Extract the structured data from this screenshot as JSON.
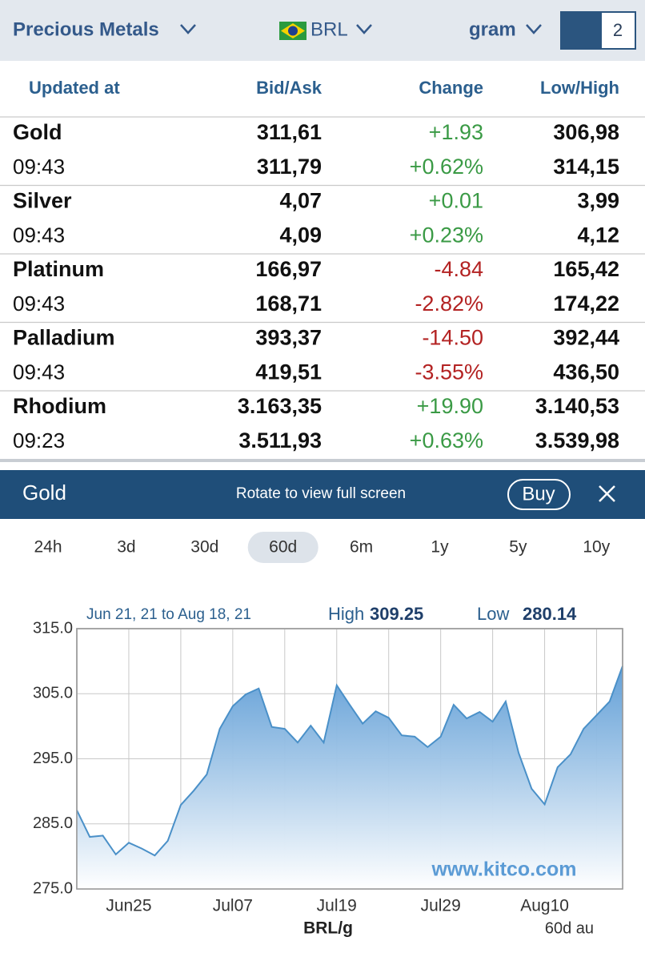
{
  "header": {
    "menu": "Precious Metals",
    "currency": "BRL",
    "unit": "gram",
    "badge": "2"
  },
  "table": {
    "columns": [
      "Updated at",
      "Bid/Ask",
      "Change",
      "Low/High"
    ],
    "rows": [
      {
        "name": "Gold",
        "time": "09:43",
        "bid": "311,61",
        "ask": "311,79",
        "change": "+1.93",
        "change_pct": "+0.62%",
        "low": "306,98",
        "high": "314,15"
      },
      {
        "name": "Silver",
        "time": "09:43",
        "bid": "4,07",
        "ask": "4,09",
        "change": "+0.01",
        "change_pct": "+0.23%",
        "low": "3,99",
        "high": "4,12"
      },
      {
        "name": "Platinum",
        "time": "09:43",
        "bid": "166,97",
        "ask": "168,71",
        "change": "-4.84",
        "change_pct": "-2.82%",
        "low": "165,42",
        "high": "174,22"
      },
      {
        "name": "Palladium",
        "time": "09:43",
        "bid": "393,37",
        "ask": "419,51",
        "change": "-14.50",
        "change_pct": "-3.55%",
        "low": "392,44",
        "high": "436,50"
      },
      {
        "name": "Rhodium",
        "time": "09:23",
        "bid": "3.163,35",
        "ask": "3.511,93",
        "change": "+19.90",
        "change_pct": "+0.63%",
        "low": "3.140,53",
        "high": "3.539,98"
      }
    ]
  },
  "panel": {
    "title": "Gold",
    "hint": "Rotate to view full screen",
    "buy": "Buy"
  },
  "ranges": [
    "24h",
    "3d",
    "30d",
    "60d",
    "6m",
    "1y",
    "5y",
    "10y"
  ],
  "selected_range": 3,
  "chart_data": {
    "type": "area",
    "subtitle": "Jun 21, 21 to Aug 18, 21",
    "high_label": "High",
    "high": 309.25,
    "low_label": "Low",
    "low": 280.14,
    "watermark": "www.kitco.com",
    "xlabel": "BRL/g",
    "corner_note": "60d au",
    "color": "#4a90c8",
    "categories": [
      null,
      null,
      null,
      null,
      "Jun25",
      null,
      null,
      null,
      null,
      null,
      null,
      null,
      "Jul07",
      null,
      null,
      null,
      null,
      null,
      null,
      null,
      "Jul19",
      null,
      null,
      null,
      null,
      null,
      null,
      null,
      "Jul29",
      null,
      null,
      null,
      null,
      null,
      null,
      null,
      "Aug10",
      null,
      null,
      null,
      null,
      null,
      null
    ],
    "values": [
      287.1,
      283.0,
      283.2,
      280.3,
      282.1,
      281.2,
      280.14,
      282.4,
      287.9,
      290.1,
      292.6,
      299.6,
      303.1,
      304.9,
      305.8,
      299.9,
      299.6,
      297.5,
      300.1,
      297.5,
      306.3,
      303.3,
      300.4,
      302.3,
      301.3,
      298.6,
      298.4,
      296.8,
      298.4,
      303.3,
      301.2,
      302.2,
      300.7,
      303.8,
      295.9,
      290.4,
      288.0,
      293.7,
      295.7,
      299.6,
      301.7,
      303.8,
      309.25
    ],
    "ylim": [
      275,
      315
    ],
    "yticks": [
      {
        "value": 275,
        "label": "275.0"
      },
      {
        "value": 285,
        "label": "285.0"
      },
      {
        "value": 295,
        "label": "295.0"
      },
      {
        "value": 305,
        "label": "305.0"
      },
      {
        "value": 315,
        "label": "315.0"
      }
    ],
    "grid": true
  }
}
